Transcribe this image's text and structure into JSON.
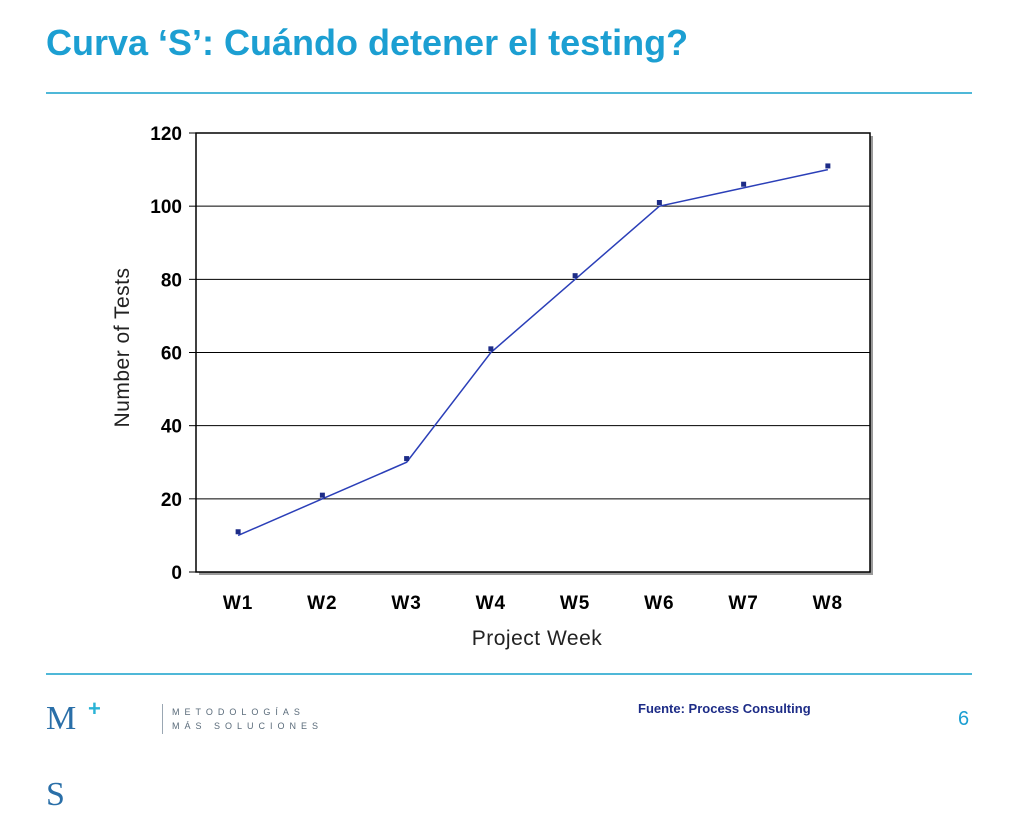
{
  "slide": {
    "title": "Curva ‘S’: Cuándo detener el testing?",
    "source": "Fuente: Process Consulting",
    "page_number": "6"
  },
  "logo": {
    "mark": "M",
    "plus": "+",
    "mark_end": "S",
    "line1": "METODOLOGÍAS",
    "line2": "MÁS SOLUCIONES"
  },
  "colors": {
    "title": "#1c9fd2",
    "rule": "#4fb8d8",
    "series": "#2b3fb8",
    "marker": "#1d2c87",
    "source": "#1d2c87"
  },
  "chart_data": {
    "type": "line",
    "title": "",
    "xlabel": "Project Week",
    "ylabel": "Number of Tests",
    "categories": [
      "W1",
      "W2",
      "W3",
      "W4",
      "W5",
      "W6",
      "W7",
      "W8"
    ],
    "ylim": [
      0,
      120
    ],
    "yticks": [
      0,
      20,
      40,
      60,
      80,
      100,
      120
    ],
    "grid": true,
    "legend": "none",
    "series": [
      {
        "values": [
          10,
          20,
          30,
          60,
          80,
          100,
          105,
          110
        ],
        "style": "line"
      },
      {
        "values": [
          11,
          21,
          31,
          61,
          81,
          101,
          106,
          111
        ],
        "style": "markers"
      }
    ]
  }
}
